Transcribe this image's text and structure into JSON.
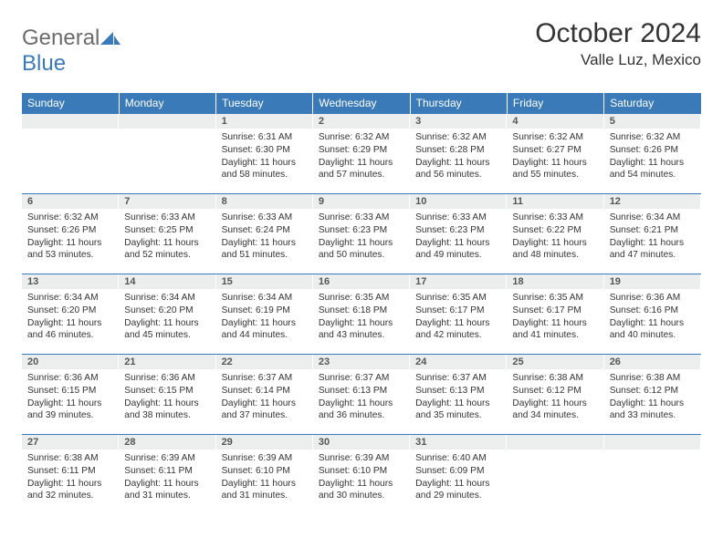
{
  "brand": {
    "word1": "General",
    "word2": "Blue"
  },
  "title": "October 2024",
  "location": "Valle Luz, Mexico",
  "dayHeaders": [
    "Sunday",
    "Monday",
    "Tuesday",
    "Wednesday",
    "Thursday",
    "Friday",
    "Saturday"
  ],
  "colors": {
    "headerBg": "#3a7ab8",
    "headerText": "#ffffff",
    "dayNumBg": "#eceded",
    "borderColor": "#3a7ab8",
    "logoGray": "#6b6b6b",
    "logoBlue": "#3a7ab8"
  },
  "layout": {
    "startOffset": 2,
    "totalCells": 35
  },
  "days": [
    {
      "n": 1,
      "sunrise": "6:31 AM",
      "sunset": "6:30 PM",
      "daylight": "11 hours and 58 minutes."
    },
    {
      "n": 2,
      "sunrise": "6:32 AM",
      "sunset": "6:29 PM",
      "daylight": "11 hours and 57 minutes."
    },
    {
      "n": 3,
      "sunrise": "6:32 AM",
      "sunset": "6:28 PM",
      "daylight": "11 hours and 56 minutes."
    },
    {
      "n": 4,
      "sunrise": "6:32 AM",
      "sunset": "6:27 PM",
      "daylight": "11 hours and 55 minutes."
    },
    {
      "n": 5,
      "sunrise": "6:32 AM",
      "sunset": "6:26 PM",
      "daylight": "11 hours and 54 minutes."
    },
    {
      "n": 6,
      "sunrise": "6:32 AM",
      "sunset": "6:26 PM",
      "daylight": "11 hours and 53 minutes."
    },
    {
      "n": 7,
      "sunrise": "6:33 AM",
      "sunset": "6:25 PM",
      "daylight": "11 hours and 52 minutes."
    },
    {
      "n": 8,
      "sunrise": "6:33 AM",
      "sunset": "6:24 PM",
      "daylight": "11 hours and 51 minutes."
    },
    {
      "n": 9,
      "sunrise": "6:33 AM",
      "sunset": "6:23 PM",
      "daylight": "11 hours and 50 minutes."
    },
    {
      "n": 10,
      "sunrise": "6:33 AM",
      "sunset": "6:23 PM",
      "daylight": "11 hours and 49 minutes."
    },
    {
      "n": 11,
      "sunrise": "6:33 AM",
      "sunset": "6:22 PM",
      "daylight": "11 hours and 48 minutes."
    },
    {
      "n": 12,
      "sunrise": "6:34 AM",
      "sunset": "6:21 PM",
      "daylight": "11 hours and 47 minutes."
    },
    {
      "n": 13,
      "sunrise": "6:34 AM",
      "sunset": "6:20 PM",
      "daylight": "11 hours and 46 minutes."
    },
    {
      "n": 14,
      "sunrise": "6:34 AM",
      "sunset": "6:20 PM",
      "daylight": "11 hours and 45 minutes."
    },
    {
      "n": 15,
      "sunrise": "6:34 AM",
      "sunset": "6:19 PM",
      "daylight": "11 hours and 44 minutes."
    },
    {
      "n": 16,
      "sunrise": "6:35 AM",
      "sunset": "6:18 PM",
      "daylight": "11 hours and 43 minutes."
    },
    {
      "n": 17,
      "sunrise": "6:35 AM",
      "sunset": "6:17 PM",
      "daylight": "11 hours and 42 minutes."
    },
    {
      "n": 18,
      "sunrise": "6:35 AM",
      "sunset": "6:17 PM",
      "daylight": "11 hours and 41 minutes."
    },
    {
      "n": 19,
      "sunrise": "6:36 AM",
      "sunset": "6:16 PM",
      "daylight": "11 hours and 40 minutes."
    },
    {
      "n": 20,
      "sunrise": "6:36 AM",
      "sunset": "6:15 PM",
      "daylight": "11 hours and 39 minutes."
    },
    {
      "n": 21,
      "sunrise": "6:36 AM",
      "sunset": "6:15 PM",
      "daylight": "11 hours and 38 minutes."
    },
    {
      "n": 22,
      "sunrise": "6:37 AM",
      "sunset": "6:14 PM",
      "daylight": "11 hours and 37 minutes."
    },
    {
      "n": 23,
      "sunrise": "6:37 AM",
      "sunset": "6:13 PM",
      "daylight": "11 hours and 36 minutes."
    },
    {
      "n": 24,
      "sunrise": "6:37 AM",
      "sunset": "6:13 PM",
      "daylight": "11 hours and 35 minutes."
    },
    {
      "n": 25,
      "sunrise": "6:38 AM",
      "sunset": "6:12 PM",
      "daylight": "11 hours and 34 minutes."
    },
    {
      "n": 26,
      "sunrise": "6:38 AM",
      "sunset": "6:12 PM",
      "daylight": "11 hours and 33 minutes."
    },
    {
      "n": 27,
      "sunrise": "6:38 AM",
      "sunset": "6:11 PM",
      "daylight": "11 hours and 32 minutes."
    },
    {
      "n": 28,
      "sunrise": "6:39 AM",
      "sunset": "6:11 PM",
      "daylight": "11 hours and 31 minutes."
    },
    {
      "n": 29,
      "sunrise": "6:39 AM",
      "sunset": "6:10 PM",
      "daylight": "11 hours and 31 minutes."
    },
    {
      "n": 30,
      "sunrise": "6:39 AM",
      "sunset": "6:10 PM",
      "daylight": "11 hours and 30 minutes."
    },
    {
      "n": 31,
      "sunrise": "6:40 AM",
      "sunset": "6:09 PM",
      "daylight": "11 hours and 29 minutes."
    }
  ],
  "labels": {
    "sunrise": "Sunrise:",
    "sunset": "Sunset:",
    "daylight": "Daylight:"
  }
}
